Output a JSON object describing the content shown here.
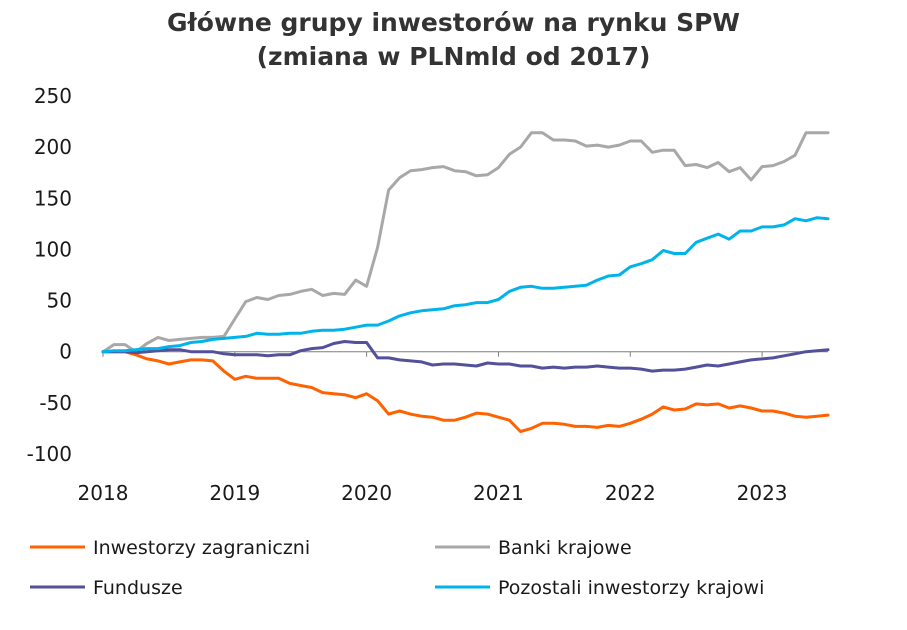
{
  "chart_data": {
    "type": "line",
    "title": "Główne grupy inwestorów na rynku SPW",
    "subtitle": "(zmiana w PLNmld od 2017)",
    "xlabel": "",
    "ylabel": "",
    "xlim": [
      2018.0,
      2023.5
    ],
    "ylim": [
      -100,
      250
    ],
    "yticks": [
      250,
      200,
      150,
      100,
      50,
      0,
      -50,
      -100
    ],
    "xticks": [
      2018,
      2019,
      2020,
      2021,
      2022,
      2023
    ],
    "grid": false,
    "legend_position": "bottom",
    "x": [
      2018.0,
      2018.083,
      2018.167,
      2018.25,
      2018.333,
      2018.417,
      2018.5,
      2018.583,
      2018.667,
      2018.75,
      2018.833,
      2018.917,
      2019.0,
      2019.083,
      2019.167,
      2019.25,
      2019.333,
      2019.417,
      2019.5,
      2019.583,
      2019.667,
      2019.75,
      2019.833,
      2019.917,
      2020.0,
      2020.083,
      2020.167,
      2020.25,
      2020.333,
      2020.417,
      2020.5,
      2020.583,
      2020.667,
      2020.75,
      2020.833,
      2020.917,
      2021.0,
      2021.083,
      2021.167,
      2021.25,
      2021.333,
      2021.417,
      2021.5,
      2021.583,
      2021.667,
      2021.75,
      2021.833,
      2021.917,
      2022.0,
      2022.083,
      2022.167,
      2022.25,
      2022.333,
      2022.417,
      2022.5,
      2022.583,
      2022.667,
      2022.75,
      2022.833,
      2022.917,
      2023.0,
      2023.083,
      2023.167,
      2023.25,
      2023.333,
      2023.417,
      2023.5
    ],
    "series": [
      {
        "name": "Inwestorzy zagraniczni",
        "color": "#ff6200",
        "values": [
          0,
          0,
          0,
          -3,
          -7,
          -9,
          -12,
          -10,
          -8,
          -8,
          -9,
          -19,
          -27,
          -24,
          -26,
          -26,
          -26,
          -31,
          -33,
          -35,
          -40,
          -41,
          -42,
          -45,
          -41,
          -48,
          -61,
          -58,
          -61,
          -63,
          -64,
          -67,
          -67,
          -64,
          -60,
          -61,
          -64,
          -67,
          -78,
          -75,
          -70,
          -70,
          -71,
          -73,
          -73,
          -74,
          -72,
          -73,
          -70,
          -66,
          -61,
          -54,
          -57,
          -56,
          -51,
          -52,
          -51,
          -55,
          -53,
          -55,
          -58,
          -58,
          -60,
          -63,
          -64,
          -63,
          -62
        ]
      },
      {
        "name": "Banki krajowe",
        "color": "#a8a8a8",
        "values": [
          0,
          7,
          7,
          0,
          8,
          14,
          11,
          12,
          13,
          14,
          14,
          15,
          32,
          49,
          53,
          51,
          55,
          56,
          59,
          61,
          55,
          57,
          56,
          70,
          64,
          102,
          158,
          170,
          177,
          178,
          180,
          181,
          177,
          176,
          172,
          173,
          180,
          193,
          200,
          214,
          214,
          207,
          207,
          206,
          201,
          202,
          200,
          202,
          206,
          206,
          195,
          197,
          197,
          182,
          183,
          180,
          185,
          176,
          180,
          168,
          181,
          182,
          186,
          192,
          214,
          214,
          214
        ]
      },
      {
        "name": "Fundusze",
        "color": "#525199",
        "values": [
          0,
          0,
          0,
          -1,
          0,
          1,
          2,
          2,
          0,
          0,
          0,
          -2,
          -3,
          -3,
          -3,
          -4,
          -3,
          -3,
          1,
          3,
          4,
          8,
          10,
          9,
          9,
          -6,
          -6,
          -8,
          -9,
          -10,
          -13,
          -12,
          -12,
          -13,
          -14,
          -11,
          -12,
          -12,
          -14,
          -14,
          -16,
          -15,
          -16,
          -15,
          -15,
          -14,
          -15,
          -16,
          -16,
          -17,
          -19,
          -18,
          -18,
          -17,
          -15,
          -13,
          -14,
          -12,
          -10,
          -8,
          -7,
          -6,
          -4,
          -2,
          0,
          1,
          2
        ]
      },
      {
        "name": "Pozostali inwestorzy krajowi",
        "color": "#00b4eb",
        "values": [
          0,
          1,
          1,
          2,
          3,
          3,
          5,
          6,
          9,
          10,
          12,
          13,
          14,
          15,
          18,
          17,
          17,
          18,
          18,
          20,
          21,
          21,
          22,
          24,
          26,
          26,
          30,
          35,
          38,
          40,
          41,
          42,
          45,
          46,
          48,
          48,
          51,
          59,
          63,
          64,
          62,
          62,
          63,
          64,
          65,
          70,
          74,
          75,
          83,
          86,
          90,
          99,
          96,
          96,
          107,
          111,
          115,
          110,
          118,
          118,
          122,
          122,
          124,
          130,
          128,
          131,
          130
        ]
      }
    ]
  }
}
